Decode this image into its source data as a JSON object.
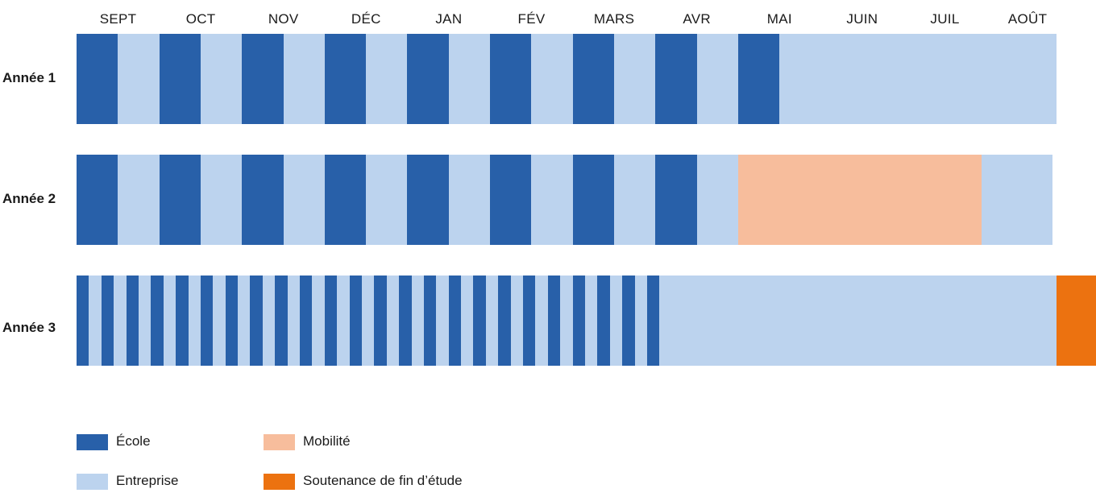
{
  "colors": {
    "ecole": "#2860a9",
    "entreprise": "#bcd3ee",
    "mobilite": "#f7bd9c",
    "soutenance": "#ec7210"
  },
  "months": [
    "SEPT",
    "OCT",
    "NOV",
    "DÉC",
    "JAN",
    "FÉV",
    "MARS",
    "AVR",
    "MAI",
    "JUIN",
    "JUIL",
    "AOÛT"
  ],
  "years": [
    {
      "label": "Année 1",
      "schedule": [
        [
          "ecole",
          0.5
        ],
        [
          "entreprise",
          0.5
        ],
        [
          "ecole",
          0.5
        ],
        [
          "entreprise",
          0.5
        ],
        [
          "ecole",
          0.5
        ],
        [
          "entreprise",
          0.5
        ],
        [
          "ecole",
          0.5
        ],
        [
          "entreprise",
          0.5
        ],
        [
          "ecole",
          0.5
        ],
        [
          "entreprise",
          0.5
        ],
        [
          "ecole",
          0.5
        ],
        [
          "entreprise",
          0.5
        ],
        [
          "ecole",
          0.5
        ],
        [
          "entreprise",
          0.5
        ],
        [
          "ecole",
          0.5
        ],
        [
          "entreprise",
          0.5
        ],
        [
          "ecole",
          0.5
        ],
        [
          "entreprise",
          3.35
        ]
      ]
    },
    {
      "label": "Année 2",
      "schedule": [
        [
          "ecole",
          0.5
        ],
        [
          "entreprise",
          0.5
        ],
        [
          "ecole",
          0.5
        ],
        [
          "entreprise",
          0.5
        ],
        [
          "ecole",
          0.5
        ],
        [
          "entreprise",
          0.5
        ],
        [
          "ecole",
          0.5
        ],
        [
          "entreprise",
          0.5
        ],
        [
          "ecole",
          0.5
        ],
        [
          "entreprise",
          0.5
        ],
        [
          "ecole",
          0.5
        ],
        [
          "entreprise",
          0.5
        ],
        [
          "ecole",
          0.5
        ],
        [
          "entreprise",
          0.5
        ],
        [
          "ecole",
          0.5
        ],
        [
          "entreprise",
          0.5
        ],
        [
          "mobilite",
          2.95
        ],
        [
          "entreprise",
          0.85
        ]
      ]
    },
    {
      "label": "Année 3",
      "schedule": [
        [
          "ecole",
          0.15
        ],
        [
          "entreprise",
          0.15
        ],
        [
          "ecole",
          0.15
        ],
        [
          "entreprise",
          0.15
        ],
        [
          "ecole",
          0.15
        ],
        [
          "entreprise",
          0.15
        ],
        [
          "ecole",
          0.15
        ],
        [
          "entreprise",
          0.15
        ],
        [
          "ecole",
          0.15
        ],
        [
          "entreprise",
          0.15
        ],
        [
          "ecole",
          0.15
        ],
        [
          "entreprise",
          0.15
        ],
        [
          "ecole",
          0.15
        ],
        [
          "entreprise",
          0.15
        ],
        [
          "ecole",
          0.15
        ],
        [
          "entreprise",
          0.15
        ],
        [
          "ecole",
          0.15
        ],
        [
          "entreprise",
          0.15
        ],
        [
          "ecole",
          0.15
        ],
        [
          "entreprise",
          0.15
        ],
        [
          "ecole",
          0.15
        ],
        [
          "entreprise",
          0.15
        ],
        [
          "ecole",
          0.15
        ],
        [
          "entreprise",
          0.15
        ],
        [
          "ecole",
          0.15
        ],
        [
          "entreprise",
          0.15
        ],
        [
          "ecole",
          0.15
        ],
        [
          "entreprise",
          0.15
        ],
        [
          "ecole",
          0.15
        ],
        [
          "entreprise",
          0.15
        ],
        [
          "ecole",
          0.15
        ],
        [
          "entreprise",
          0.15
        ],
        [
          "ecole",
          0.15
        ],
        [
          "entreprise",
          0.15
        ],
        [
          "ecole",
          0.15
        ],
        [
          "entreprise",
          0.15
        ],
        [
          "ecole",
          0.15
        ],
        [
          "entreprise",
          0.15
        ],
        [
          "ecole",
          0.15
        ],
        [
          "entreprise",
          0.15
        ],
        [
          "ecole",
          0.15
        ],
        [
          "entreprise",
          0.15
        ],
        [
          "ecole",
          0.15
        ],
        [
          "entreprise",
          0.15
        ],
        [
          "ecole",
          0.15
        ],
        [
          "entreprise",
          0.15
        ],
        [
          "ecole",
          0.15
        ],
        [
          "entreprise",
          4.8
        ],
        [
          "soutenance",
          0.52
        ]
      ]
    }
  ],
  "legend": [
    {
      "key": "ecole",
      "label": "École"
    },
    {
      "key": "mobilite",
      "label": "Mobilité"
    },
    {
      "key": "entreprise",
      "label": "Entreprise"
    },
    {
      "key": "soutenance",
      "label": "Soutenance de fin d’étude"
    }
  ]
}
